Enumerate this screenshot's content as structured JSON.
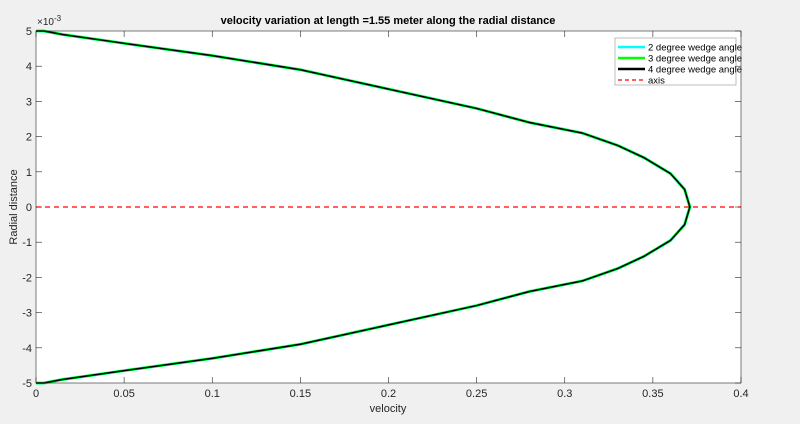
{
  "chart_data": {
    "type": "line",
    "title": "velocity variation at length =1.55 meter along the radial distance",
    "xlabel": "velocity",
    "ylabel": "Radial distance",
    "y_exponent_label": "×10",
    "y_exponent_power": "-3",
    "xlim": [
      0,
      0.4
    ],
    "ylim": [
      -0.005,
      0.005
    ],
    "xticks": [
      "0",
      "0.05",
      "0.1",
      "0.15",
      "0.2",
      "0.25",
      "0.3",
      "0.35",
      "0.4"
    ],
    "yticks": [
      "5",
      "4",
      "3",
      "2",
      "1",
      "0",
      "-1",
      "-2",
      "-3",
      "-4",
      "-5"
    ],
    "grid": false,
    "legend_position": "upper right",
    "series": [
      {
        "name": "2 degree wedge angle",
        "color": "#00ffff",
        "style": "solid",
        "x": [
          0,
          0.0045,
          0.015,
          0.05,
          0.1,
          0.15,
          0.2,
          0.25,
          0.28,
          0.31,
          0.33,
          0.345,
          0.36,
          0.368,
          0.371,
          0.368,
          0.36,
          0.345,
          0.33,
          0.31,
          0.28,
          0.25,
          0.2,
          0.15,
          0.1,
          0.05,
          0.015,
          0.0045,
          0
        ],
        "y": [
          5,
          5,
          4.9,
          4.65,
          4.3,
          3.9,
          3.35,
          2.8,
          2.4,
          2.1,
          1.75,
          1.4,
          0.95,
          0.5,
          0,
          -0.5,
          -0.95,
          -1.4,
          -1.75,
          -2.1,
          -2.4,
          -2.8,
          -3.35,
          -3.9,
          -4.3,
          -4.65,
          -4.9,
          -5,
          -5
        ]
      },
      {
        "name": "3 degree wedge angle",
        "color": "#00ff00",
        "style": "solid",
        "x": [
          0,
          0.0045,
          0.015,
          0.05,
          0.1,
          0.15,
          0.2,
          0.25,
          0.28,
          0.31,
          0.33,
          0.345,
          0.36,
          0.368,
          0.371,
          0.368,
          0.36,
          0.345,
          0.33,
          0.31,
          0.28,
          0.25,
          0.2,
          0.15,
          0.1,
          0.05,
          0.015,
          0.0045,
          0
        ],
        "y": [
          5,
          5,
          4.9,
          4.65,
          4.3,
          3.9,
          3.35,
          2.8,
          2.4,
          2.1,
          1.75,
          1.4,
          0.95,
          0.5,
          0,
          -0.5,
          -0.95,
          -1.4,
          -1.75,
          -2.1,
          -2.4,
          -2.8,
          -3.35,
          -3.9,
          -4.3,
          -4.65,
          -4.9,
          -5,
          -5
        ]
      },
      {
        "name": "4 degree wedge angle",
        "color": "#000000",
        "style": "solid",
        "x": [
          0,
          0.0045,
          0.015,
          0.05,
          0.1,
          0.15,
          0.2,
          0.25,
          0.28,
          0.31,
          0.33,
          0.345,
          0.36,
          0.368,
          0.371,
          0.368,
          0.36,
          0.345,
          0.33,
          0.31,
          0.28,
          0.25,
          0.2,
          0.15,
          0.1,
          0.05,
          0.015,
          0.0045,
          0
        ],
        "y": [
          5,
          5,
          4.9,
          4.65,
          4.3,
          3.9,
          3.35,
          2.8,
          2.4,
          2.1,
          1.75,
          1.4,
          0.95,
          0.5,
          0,
          -0.5,
          -0.95,
          -1.4,
          -1.75,
          -2.1,
          -2.4,
          -2.8,
          -3.35,
          -3.9,
          -4.3,
          -4.65,
          -4.9,
          -5,
          -5
        ]
      },
      {
        "name": "axis",
        "color": "#ff0000",
        "style": "dashed",
        "x": [
          0,
          0.4
        ],
        "y": [
          0,
          0
        ]
      }
    ]
  }
}
